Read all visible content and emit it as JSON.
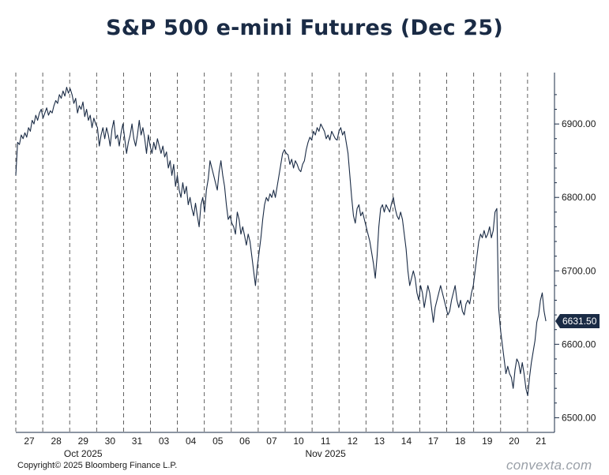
{
  "chart_data": {
    "type": "line",
    "title": "S&P 500 e-mini Futures (Dec 25)",
    "ylim": [
      6480,
      6970
    ],
    "y_ticks": [
      6500,
      6600,
      6700,
      6800,
      6900
    ],
    "y_tick_labels": [
      "6500.00",
      "6600.00",
      "6700.00",
      "6800.00",
      "6900.00"
    ],
    "day_labels": [
      "27",
      "28",
      "29",
      "30",
      "31",
      "03",
      "04",
      "05",
      "06",
      "07",
      "10",
      "11",
      "12",
      "13",
      "14",
      "17",
      "18",
      "19",
      "20",
      "21"
    ],
    "month_labels": [
      {
        "label": "Oct 2025",
        "day_index": 2
      },
      {
        "label": "Nov 2025",
        "day_index": 11
      }
    ],
    "grid": "vertical dashed day separators",
    "last_value": 6631.5,
    "last_value_label": "6631.50",
    "line_color": "#1a2b45",
    "series": [
      {
        "values": [
          6830,
          6875,
          6872,
          6885,
          6880,
          6888,
          6882,
          6895,
          6890,
          6905,
          6900,
          6912,
          6905,
          6915,
          6920,
          6908,
          6915,
          6922,
          6912,
          6918,
          6915,
          6925,
          6932,
          6928,
          6940,
          6935,
          6945,
          6938,
          6950,
          6942,
          6948,
          6940,
          6928,
          6935,
          6915,
          6925,
          6920,
          6930,
          6910,
          6920,
          6905,
          6912,
          6895,
          6908,
          6900,
          6895,
          6870,
          6885,
          6895,
          6880,
          6895,
          6885,
          6870,
          6893,
          6905,
          6880,
          6885,
          6870,
          6888,
          6900,
          6880,
          6860,
          6875,
          6885,
          6900,
          6880,
          6870,
          6885,
          6905,
          6885,
          6895,
          6880,
          6860,
          6885,
          6870,
          6860,
          6875,
          6865,
          6880,
          6870,
          6860,
          6870,
          6855,
          6862,
          6840,
          6850,
          6830,
          6845,
          6815,
          6830,
          6810,
          6800,
          6820,
          6805,
          6815,
          6790,
          6800,
          6785,
          6775,
          6792,
          6775,
          6760,
          6790,
          6800,
          6780,
          6810,
          6825,
          6850,
          6840,
          6830,
          6820,
          6810,
          6835,
          6850,
          6830,
          6815,
          6790,
          6770,
          6775,
          6765,
          6760,
          6750,
          6780,
          6770,
          6750,
          6760,
          6748,
          6735,
          6750,
          6740,
          6720,
          6700,
          6680,
          6705,
          6725,
          6745,
          6770,
          6790,
          6800,
          6795,
          6805,
          6800,
          6810,
          6800,
          6815,
          6830,
          6845,
          6860,
          6865,
          6860,
          6858,
          6845,
          6852,
          6840,
          6850,
          6845,
          6838,
          6835,
          6845,
          6850,
          6865,
          6875,
          6882,
          6878,
          6890,
          6885,
          6895,
          6890,
          6900,
          6895,
          6890,
          6880,
          6885,
          6878,
          6890,
          6885,
          6880,
          6878,
          6890,
          6895,
          6885,
          6890,
          6875,
          6860,
          6830,
          6800,
          6775,
          6765,
          6785,
          6790,
          6775,
          6780,
          6770,
          6760,
          6750,
          6740,
          6725,
          6710,
          6690,
          6720,
          6760,
          6785,
          6790,
          6780,
          6790,
          6785,
          6780,
          6792,
          6800,
          6785,
          6775,
          6770,
          6780,
          6770,
          6750,
          6730,
          6700,
          6680,
          6690,
          6700,
          6690,
          6670,
          6660,
          6680,
          6670,
          6650,
          6665,
          6680,
          6670,
          6650,
          6630,
          6650,
          6660,
          6670,
          6680,
          6670,
          6660,
          6650,
          6640,
          6645,
          6660,
          6670,
          6680,
          6660,
          6650,
          6660,
          6645,
          6640,
          6655,
          6660,
          6655,
          6670,
          6680,
          6700,
          6720,
          6740,
          6750,
          6745,
          6755,
          6745,
          6750,
          6760,
          6745,
          6755,
          6780,
          6785,
          6650,
          6620,
          6600,
          6580,
          6560,
          6570,
          6560,
          6555,
          6540,
          6565,
          6580,
          6575,
          6560,
          6575,
          6560,
          6540,
          6530,
          6555,
          6575,
          6590,
          6605,
          6630,
          6640,
          6660,
          6670,
          6645,
          6631.5
        ]
      }
    ]
  },
  "footer": {
    "copyright": "Copyright© 2025 Bloomberg Finance L.P.",
    "watermark": "convexta.com"
  }
}
